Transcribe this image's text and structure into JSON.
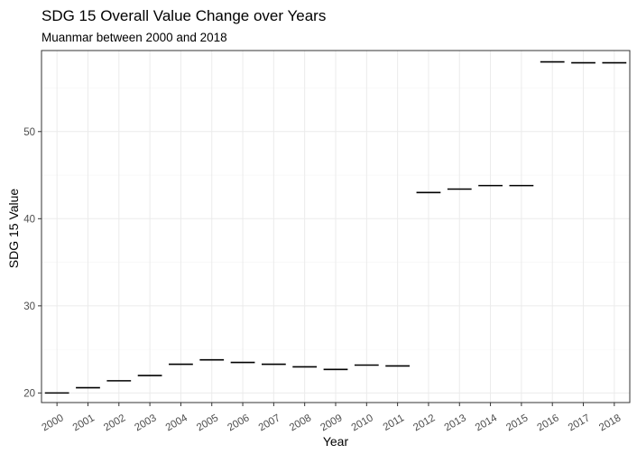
{
  "chart_data": {
    "type": "boxplot",
    "title": "SDG 15 Overall Value Change over Years",
    "subtitle": "Muanmar between 2000 and 2018",
    "xlabel": "Year",
    "ylabel": "SDG 15 Value",
    "categories": [
      "2000",
      "2001",
      "2002",
      "2003",
      "2004",
      "2005",
      "2006",
      "2007",
      "2008",
      "2009",
      "2010",
      "2011",
      "2012",
      "2013",
      "2014",
      "2015",
      "2016",
      "2017",
      "2018"
    ],
    "values": [
      20.0,
      20.6,
      21.4,
      22.0,
      23.3,
      23.8,
      23.5,
      23.3,
      23.0,
      22.7,
      23.2,
      23.1,
      43.0,
      43.4,
      43.8,
      43.8,
      58.0,
      57.9,
      57.9
    ],
    "ylim": [
      18.9,
      59.3
    ],
    "yticks": [
      20,
      30,
      40,
      50
    ],
    "grid": true,
    "legend": "none"
  }
}
